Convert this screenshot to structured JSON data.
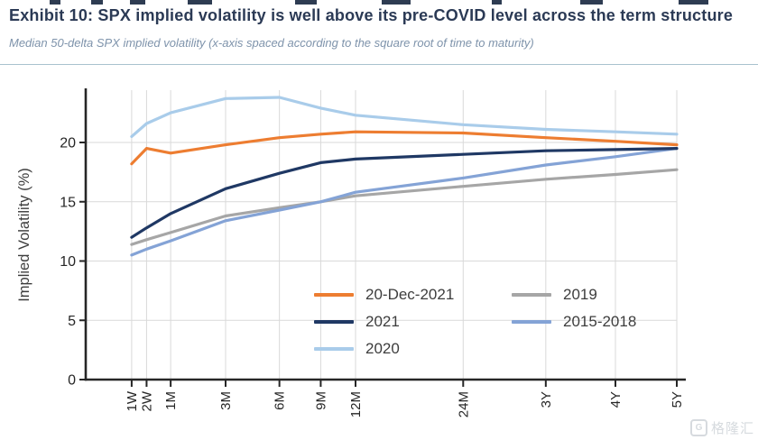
{
  "page": {
    "title": "Exhibit 10: SPX implied volatility is well above its pre-COVID level across the term structure",
    "subtitle": "Median 50-delta SPX implied volatility (x-axis spaced according to the square root of time to maturity)",
    "watermark": {
      "logo_letter": "G",
      "text": "格隆汇"
    }
  },
  "chart_data": {
    "type": "line",
    "title": "",
    "xlabel": "",
    "ylabel": "Implied Volatility (%)",
    "x_spacing": "square root of time to maturity",
    "categories": [
      "1W",
      "2W",
      "1M",
      "3M",
      "6M",
      "9M",
      "12M",
      "24M",
      "3Y",
      "4Y",
      "5Y"
    ],
    "maturities_years": [
      0.0192,
      0.0384,
      0.0833,
      0.25,
      0.5,
      0.75,
      1,
      2,
      3,
      4,
      5
    ],
    "yticks": [
      0,
      5,
      10,
      15,
      20
    ],
    "ylim": [
      0,
      24.5
    ],
    "grid": true,
    "axis_color": "#262626",
    "grid_color": "#d9d9d9",
    "legend_position": "inside bottom-center, two columns, no frame",
    "legend_columns": [
      [
        "20-Dec-2021",
        "2021",
        "2020"
      ],
      [
        "2019",
        "2015-2018"
      ]
    ],
    "draw_order": [
      "2019",
      "2015-2018",
      "2020",
      "2021",
      "20-Dec-2021"
    ],
    "series": [
      {
        "name": "20-Dec-2021",
        "color": "#ED7D31",
        "values": [
          18.2,
          19.5,
          19.1,
          19.8,
          20.4,
          20.7,
          20.9,
          20.8,
          20.4,
          20.1,
          19.8
        ]
      },
      {
        "name": "2021",
        "color": "#1F3864",
        "values": [
          12.0,
          12.8,
          14.0,
          16.1,
          17.4,
          18.3,
          18.6,
          19.0,
          19.3,
          19.4,
          19.5
        ]
      },
      {
        "name": "2020",
        "color": "#A9CCEA",
        "values": [
          20.5,
          21.6,
          22.5,
          23.7,
          23.8,
          22.9,
          22.3,
          21.5,
          21.1,
          20.9,
          20.7
        ]
      },
      {
        "name": "2019",
        "color": "#A6A6A6",
        "values": [
          11.4,
          11.8,
          12.4,
          13.8,
          14.5,
          15.0,
          15.5,
          16.3,
          16.9,
          17.3,
          17.7
        ]
      },
      {
        "name": "2015-2018",
        "color": "#84A3D6",
        "values": [
          10.5,
          11.0,
          11.7,
          13.4,
          14.3,
          15.0,
          15.8,
          17.0,
          18.1,
          18.8,
          19.5
        ]
      }
    ]
  }
}
